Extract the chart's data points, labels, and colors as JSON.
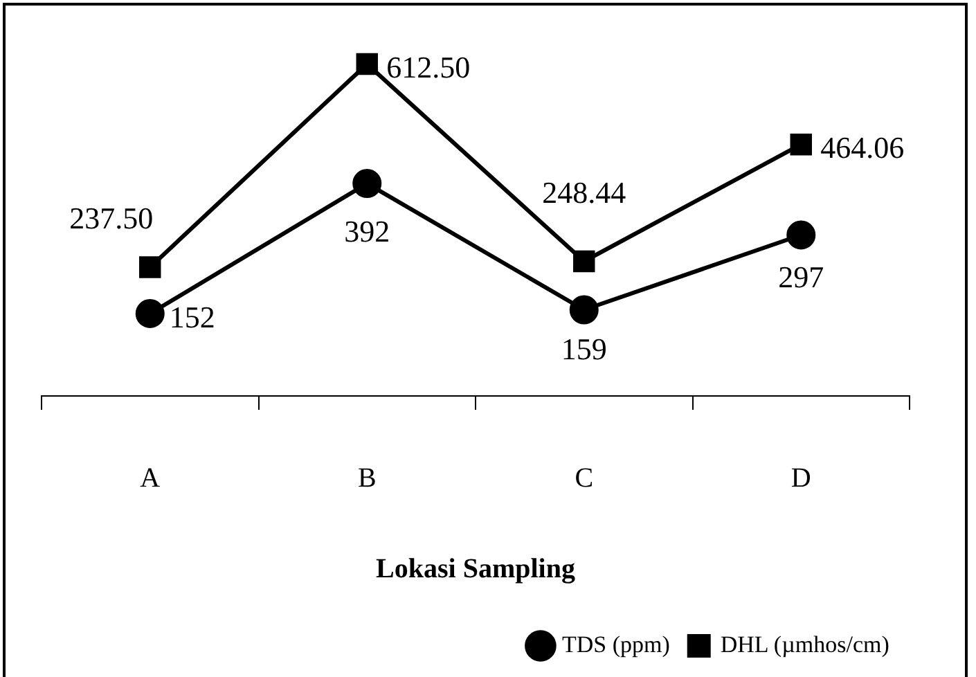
{
  "chart_data": {
    "type": "line",
    "xlabel": "Lokasi Sampling",
    "categories": [
      "A",
      "B",
      "C",
      "D"
    ],
    "series": [
      {
        "name": "TDS (ppm)",
        "color": "#000000",
        "marker": "circle",
        "values": [
          152,
          392,
          159,
          297
        ],
        "value_labels": [
          "152",
          "392",
          "159",
          "297"
        ]
      },
      {
        "name": "DHL (µmhos/cm)",
        "color": "#000000",
        "marker": "square",
        "values": [
          237.5,
          612.5,
          248.44,
          464.06
        ],
        "value_labels": [
          "237.50",
          "612.50",
          "248.44",
          "464.06"
        ]
      }
    ],
    "tick_labels": "x",
    "grid": false,
    "legend": "bottom right",
    "line_style": "solid"
  }
}
